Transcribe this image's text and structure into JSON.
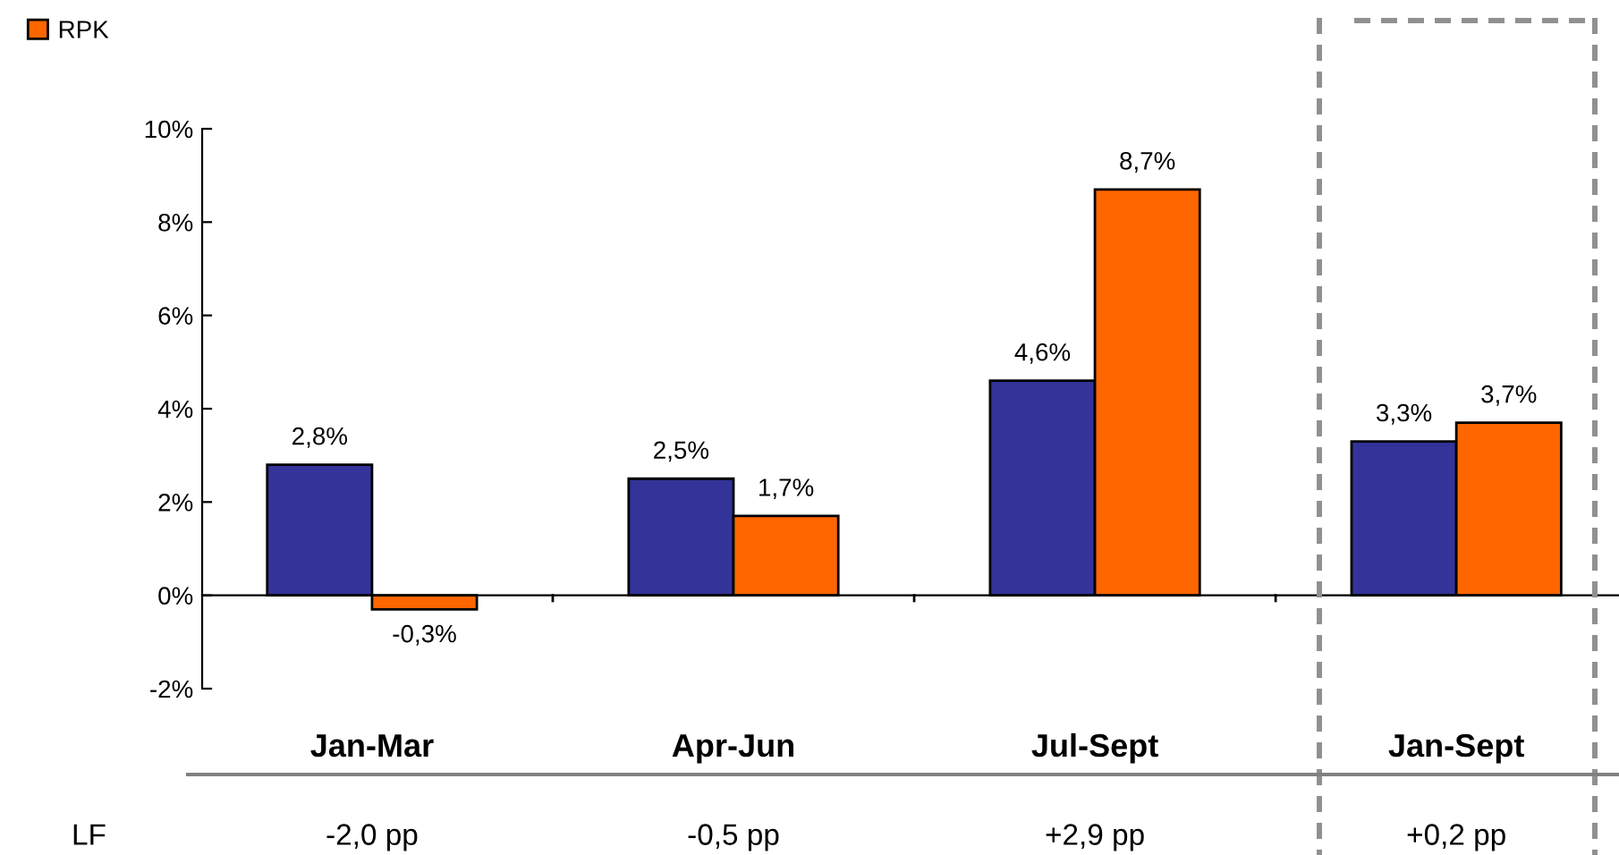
{
  "chart_data": {
    "type": "bar",
    "categories": [
      "Jan-Mar",
      "Apr-Jun",
      "Jul-Sept",
      "Jan-Sept"
    ],
    "series": [
      {
        "color": "#333399",
        "values": [
          2.8,
          2.5,
          4.6,
          3.3
        ],
        "value_labels": [
          "2,8%",
          "2,5%",
          "4,6%",
          "3,3%"
        ]
      },
      {
        "name": "RPK",
        "color": "#ff6600",
        "values": [
          -0.3,
          1.7,
          8.7,
          3.7
        ],
        "value_labels": [
          "-0,3%",
          "1,7%",
          "8,7%",
          "3,7%"
        ]
      }
    ],
    "ylim": [
      -2,
      10
    ],
    "yticks": [
      {
        "value": -2,
        "label": "-2%"
      },
      {
        "value": 0,
        "label": "0%"
      },
      {
        "value": 2,
        "label": "2%"
      },
      {
        "value": 4,
        "label": "4%"
      },
      {
        "value": 6,
        "label": "6%"
      },
      {
        "value": 8,
        "label": "8%"
      },
      {
        "value": 10,
        "label": "10%"
      }
    ],
    "legend": "top left",
    "annotations": [
      "LF",
      "-2,0 pp",
      "-0,5 pp",
      "+2,9 pp",
      "+0,2 pp"
    ]
  }
}
